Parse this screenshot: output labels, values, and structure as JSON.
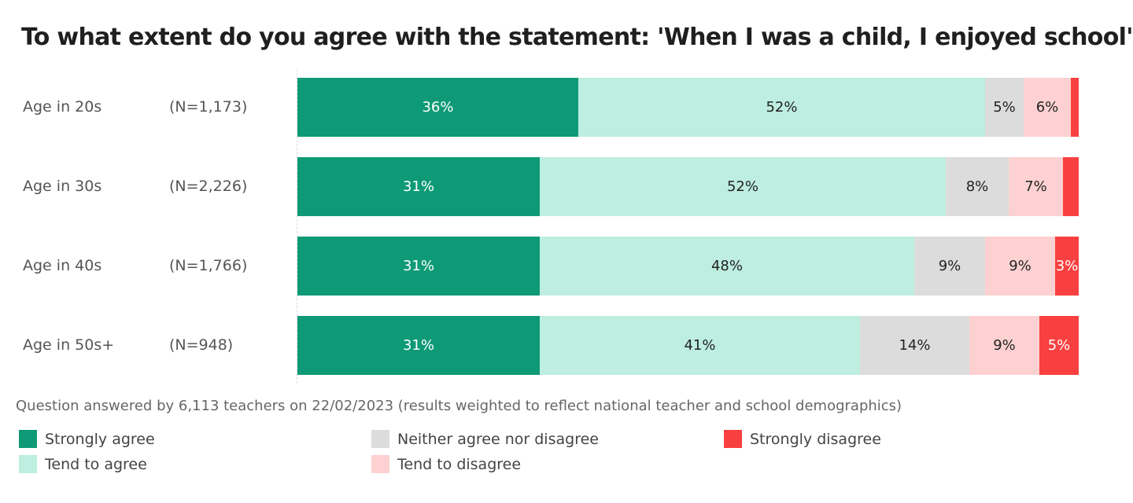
{
  "chart_data": {
    "type": "bar",
    "orientation": "horizontal",
    "stacked": true,
    "title": "To what extent do you agree with the statement: 'When I was a child, I enjoyed school'",
    "categories": [
      "Age in 20s",
      "Age in 30s",
      "Age in 40s",
      "Age in 50s+"
    ],
    "sample_sizes": [
      "(N=1,173)",
      "(N=2,226)",
      "(N=1,766)",
      "(N=948)"
    ],
    "xlim": [
      0,
      100
    ],
    "grid": false,
    "legend_position": "bottom",
    "series": [
      {
        "name": "Strongly agree",
        "color": "#0e9a76",
        "text_color": "#ffffff",
        "values": [
          36,
          31,
          31,
          31
        ],
        "labels": [
          "36%",
          "31%",
          "31%",
          "31%"
        ]
      },
      {
        "name": "Tend to agree",
        "color": "#bdeee0",
        "text_color": "#222222",
        "values": [
          52,
          52,
          48,
          41
        ],
        "labels": [
          "52%",
          "52%",
          "48%",
          "41%"
        ]
      },
      {
        "name": "Neither agree nor disagree",
        "color": "#dcdcdc",
        "text_color": "#222222",
        "values": [
          5,
          8,
          9,
          14
        ],
        "labels": [
          "5%",
          "8%",
          "9%",
          "14%"
        ]
      },
      {
        "name": "Tend to disagree",
        "color": "#fdd1d1",
        "text_color": "#222222",
        "values": [
          6,
          7,
          9,
          9
        ],
        "labels": [
          "6%",
          "7%",
          "9%",
          "9%"
        ]
      },
      {
        "name": "Strongly disagree",
        "color": "#f84040",
        "text_color": "#ffffff",
        "values": [
          1,
          2,
          3,
          5
        ],
        "labels": [
          "",
          "",
          "3%",
          "5%"
        ]
      }
    ]
  },
  "footnote": "Question answered by 6,113 teachers on 22/02/2023 (results weighted to reflect national teacher and school demographics)"
}
